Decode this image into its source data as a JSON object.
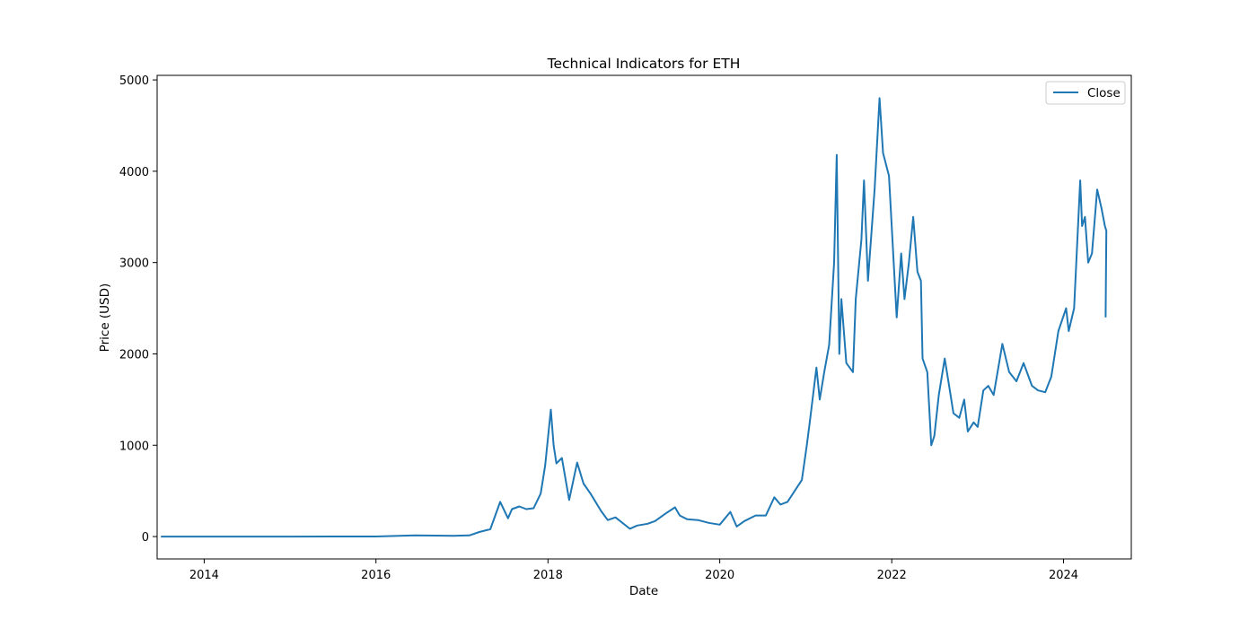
{
  "chart_data": {
    "type": "line",
    "title": "Technical Indicators for ETH",
    "xlabel": "Date",
    "ylabel": "Price (USD)",
    "xlim": [
      "2013-06-15",
      "2024-10-15"
    ],
    "ylim": [
      -245,
      5050
    ],
    "x_ticks": [
      "2014",
      "2016",
      "2018",
      "2020",
      "2022",
      "2024"
    ],
    "y_ticks": [
      "0",
      "1000",
      "2000",
      "3000",
      "4000",
      "5000"
    ],
    "grid": false,
    "legend": {
      "position": "top-right"
    },
    "series": [
      {
        "name": "Close",
        "color": "#1f77b4",
        "x": [
          "2013-07-01",
          "2014-01-01",
          "2014-07-01",
          "2015-01-01",
          "2015-07-01",
          "2016-01-01",
          "2016-06-15",
          "2016-12-01",
          "2017-02-01",
          "2017-03-15",
          "2017-05-01",
          "2017-06-12",
          "2017-07-15",
          "2017-08-01",
          "2017-09-01",
          "2017-10-01",
          "2017-11-01",
          "2017-12-01",
          "2017-12-20",
          "2018-01-13",
          "2018-01-25",
          "2018-02-06",
          "2018-03-01",
          "2018-04-01",
          "2018-05-05",
          "2018-06-01",
          "2018-07-01",
          "2018-08-15",
          "2018-09-12",
          "2018-10-15",
          "2018-12-15",
          "2019-01-15",
          "2019-03-01",
          "2019-04-01",
          "2019-05-15",
          "2019-06-25",
          "2019-07-15",
          "2019-08-15",
          "2019-10-01",
          "2019-11-15",
          "2020-01-01",
          "2020-02-15",
          "2020-03-13",
          "2020-04-15",
          "2020-06-01",
          "2020-07-15",
          "2020-08-20",
          "2020-09-15",
          "2020-10-15",
          "2020-11-20",
          "2020-12-15",
          "2021-01-05",
          "2021-01-20",
          "2021-02-15",
          "2021-03-01",
          "2021-03-20",
          "2021-04-10",
          "2021-05-01",
          "2021-05-12",
          "2021-05-23",
          "2021-06-01",
          "2021-06-22",
          "2021-07-20",
          "2021-08-01",
          "2021-08-25",
          "2021-09-05",
          "2021-09-22",
          "2021-10-20",
          "2021-11-10",
          "2021-11-25",
          "2021-12-20",
          "2022-01-22",
          "2022-02-10",
          "2022-02-24",
          "2022-03-15",
          "2022-04-02",
          "2022-04-20",
          "2022-05-05",
          "2022-05-12",
          "2022-06-01",
          "2022-06-18",
          "2022-07-01",
          "2022-07-20",
          "2022-08-14",
          "2022-09-05",
          "2022-09-20",
          "2022-10-15",
          "2022-11-05",
          "2022-11-20",
          "2022-12-15",
          "2023-01-01",
          "2023-01-25",
          "2023-02-15",
          "2023-03-10",
          "2023-04-16",
          "2023-05-15",
          "2023-06-15",
          "2023-07-15",
          "2023-08-20",
          "2023-09-15",
          "2023-10-15",
          "2023-11-10",
          "2023-12-10",
          "2024-01-12",
          "2024-01-23",
          "2024-02-15",
          "2024-03-12",
          "2024-03-20",
          "2024-04-01",
          "2024-04-15",
          "2024-05-01",
          "2024-05-23",
          "2024-06-10",
          "2024-06-25",
          "2024-07-01",
          "2024-06-28"
        ],
        "values": [
          0,
          0,
          0,
          0,
          1,
          1,
          12,
          8,
          12,
          50,
          80,
          380,
          200,
          300,
          330,
          300,
          310,
          470,
          780,
          1390,
          1000,
          800,
          860,
          400,
          810,
          580,
          470,
          280,
          180,
          210,
          85,
          120,
          140,
          170,
          250,
          320,
          230,
          190,
          180,
          150,
          130,
          270,
          110,
          170,
          230,
          230,
          430,
          350,
          380,
          520,
          620,
          1000,
          1300,
          1850,
          1500,
          1800,
          2100,
          3000,
          4180,
          2000,
          2600,
          1900,
          1800,
          2600,
          3250,
          3900,
          2800,
          3800,
          4800,
          4200,
          3950,
          2400,
          3100,
          2600,
          3000,
          3500,
          2900,
          2800,
          1950,
          1800,
          1000,
          1100,
          1550,
          1950,
          1600,
          1350,
          1300,
          1500,
          1150,
          1250,
          1200,
          1600,
          1650,
          1550,
          2110,
          1800,
          1700,
          1900,
          1650,
          1600,
          1580,
          1750,
          2250,
          2500,
          2250,
          2500,
          3900,
          3400,
          3500,
          3000,
          3100,
          3800,
          3600,
          3400,
          3350,
          2400
        ]
      }
    ]
  }
}
